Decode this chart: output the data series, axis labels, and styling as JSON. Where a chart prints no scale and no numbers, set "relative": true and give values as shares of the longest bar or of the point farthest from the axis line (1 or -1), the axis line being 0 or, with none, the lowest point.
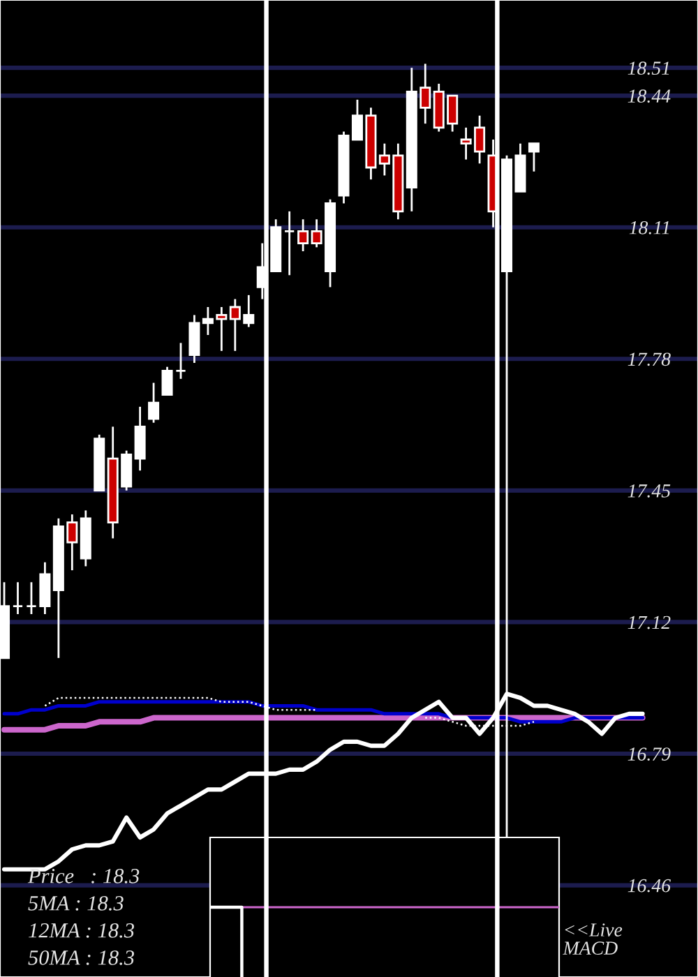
{
  "chart_data": [
    {
      "type": "candlestick",
      "categories": [
        null,
        null,
        null,
        null,
        null,
        null,
        null,
        null,
        null,
        null,
        null,
        null,
        null,
        null,
        null,
        null,
        null,
        null,
        null,
        null,
        null,
        null,
        null,
        null,
        null,
        null,
        null,
        null,
        null,
        null,
        null,
        null,
        null,
        null,
        null,
        null,
        null,
        null,
        null,
        null,
        null,
        null,
        null,
        null,
        null,
        null,
        null,
        null
      ],
      "ohlc": [
        [
          17.03,
          17.22,
          17.03,
          17.16
        ],
        [
          17.16,
          17.22,
          17.14,
          17.16
        ],
        [
          17.16,
          17.22,
          17.14,
          17.16
        ],
        [
          17.16,
          17.27,
          17.14,
          17.24
        ],
        [
          17.2,
          17.38,
          17.03,
          17.36
        ],
        [
          17.37,
          17.39,
          17.25,
          17.32
        ],
        [
          17.28,
          17.4,
          17.26,
          17.38
        ],
        [
          17.45,
          17.59,
          17.45,
          17.58
        ],
        [
          17.53,
          17.61,
          17.33,
          17.37
        ],
        [
          17.46,
          17.55,
          17.45,
          17.54
        ],
        [
          17.53,
          17.66,
          17.5,
          17.61
        ],
        [
          17.63,
          17.72,
          17.62,
          17.67
        ],
        [
          17.69,
          17.76,
          17.69,
          17.75
        ],
        [
          17.75,
          17.82,
          17.73,
          17.75
        ],
        [
          17.79,
          17.89,
          17.77,
          17.87
        ],
        [
          17.87,
          17.91,
          17.84,
          17.88
        ],
        [
          17.89,
          17.91,
          17.8,
          17.88
        ],
        [
          17.91,
          17.93,
          17.8,
          17.88
        ],
        [
          17.87,
          17.94,
          17.86,
          17.89
        ],
        [
          17.96,
          18.07,
          17.93,
          18.01
        ],
        [
          18.0,
          18.13,
          18.0,
          18.11
        ],
        [
          18.1,
          18.15,
          17.99,
          18.1
        ],
        [
          18.1,
          18.13,
          18.05,
          18.07
        ],
        [
          18.1,
          18.13,
          18.06,
          18.07
        ],
        [
          18.0,
          18.18,
          17.96,
          18.17
        ],
        [
          18.19,
          18.35,
          18.17,
          18.34
        ],
        [
          18.33,
          18.43,
          18.33,
          18.39
        ],
        [
          18.39,
          18.41,
          18.23,
          18.26
        ],
        [
          18.29,
          18.32,
          18.24,
          18.27
        ],
        [
          18.29,
          18.32,
          18.13,
          18.15
        ],
        [
          18.21,
          18.51,
          18.15,
          18.45
        ],
        [
          18.46,
          18.52,
          18.37,
          18.41
        ],
        [
          18.45,
          18.47,
          18.35,
          18.36
        ],
        [
          18.44,
          18.44,
          18.35,
          18.37
        ],
        [
          18.33,
          18.36,
          18.28,
          18.32
        ],
        [
          18.36,
          18.39,
          18.27,
          18.3
        ],
        [
          18.29,
          18.33,
          18.11,
          18.15
        ],
        [
          18.0,
          18.29,
          16.58,
          18.28
        ],
        [
          18.2,
          18.32,
          18.2,
          18.29
        ],
        [
          18.3,
          18.32,
          18.25,
          18.32
        ],
        null,
        null,
        null,
        null,
        null,
        null,
        null,
        null
      ],
      "colors": [
        "#ffffff",
        "#ffffff",
        "#ffffff",
        "#ffffff",
        "#ffffff",
        "#cc0000",
        "#ffffff",
        "#ffffff",
        "#cc0000",
        "#ffffff",
        "#ffffff",
        "#ffffff",
        "#ffffff",
        "#ffffff",
        "#ffffff",
        "#ffffff",
        "#cc0000",
        "#cc0000",
        "#ffffff",
        "#ffffff",
        "#ffffff",
        "#ffffff",
        "#cc0000",
        "#cc0000",
        "#ffffff",
        "#ffffff",
        "#ffffff",
        "#cc0000",
        "#cc0000",
        "#cc0000",
        "#ffffff",
        "#cc0000",
        "#cc0000",
        "#cc0000",
        "#cc0000",
        "#cc0000",
        "#cc0000",
        "#ffffff",
        "#ffffff",
        "#ffffff",
        null,
        null,
        null,
        null,
        null,
        null,
        null,
        null
      ],
      "series": [
        {
          "type": "line",
          "color": "#cc66cc",
          "values": [
            16.85,
            16.85,
            16.85,
            16.85,
            16.86,
            16.86,
            16.86,
            16.87,
            16.87,
            16.87,
            16.87,
            16.88,
            16.88,
            16.88,
            16.88,
            16.88,
            16.88,
            16.88,
            16.88,
            16.88,
            16.88,
            16.88,
            16.88,
            16.88,
            16.88,
            16.88,
            16.88,
            16.88,
            16.88,
            16.88,
            16.88,
            16.88,
            16.88,
            16.88,
            16.88,
            16.88,
            16.88,
            16.88,
            16.88,
            16.88,
            16.88,
            16.88,
            16.88,
            16.88,
            16.88,
            16.88,
            16.88,
            16.88
          ]
        },
        {
          "type": "line",
          "color": "#0000cc",
          "values": [
            16.89,
            16.89,
            16.9,
            16.9,
            16.91,
            16.91,
            16.91,
            16.92,
            16.92,
            16.92,
            16.92,
            16.92,
            16.92,
            16.92,
            16.92,
            16.92,
            16.92,
            16.92,
            16.92,
            16.91,
            16.91,
            16.91,
            16.91,
            16.9,
            16.9,
            16.9,
            16.9,
            16.9,
            16.89,
            16.89,
            16.89,
            16.89,
            16.89,
            16.88,
            16.88,
            16.88,
            16.88,
            16.88,
            16.87,
            16.87,
            16.87,
            16.87,
            16.88,
            16.88,
            16.88,
            16.88,
            16.88,
            16.88
          ]
        },
        {
          "type": "line",
          "color": "#ffffff",
          "line_style": "dotted",
          "values": [
            null,
            null,
            null,
            16.91,
            16.93,
            16.93,
            16.93,
            16.93,
            16.93,
            16.93,
            16.93,
            16.93,
            16.93,
            16.93,
            16.93,
            16.93,
            16.92,
            16.92,
            16.92,
            16.91,
            16.9,
            16.9,
            16.9,
            16.9,
            null,
            null,
            null,
            null,
            null,
            null,
            null,
            16.88,
            16.88,
            16.87,
            16.86,
            16.86,
            16.86,
            16.86,
            16.86,
            16.87,
            null,
            null,
            null,
            null,
            null,
            null,
            null,
            null
          ]
        },
        {
          "type": "line",
          "color": "#ffffff",
          "values": [
            16.5,
            16.5,
            16.5,
            16.5,
            16.52,
            16.55,
            16.56,
            16.56,
            16.57,
            16.63,
            16.58,
            16.6,
            16.64,
            16.66,
            16.68,
            16.7,
            16.7,
            16.72,
            16.74,
            16.74,
            16.74,
            16.75,
            16.75,
            16.77,
            16.8,
            16.82,
            16.82,
            16.81,
            16.81,
            16.84,
            16.88,
            16.9,
            16.92,
            16.88,
            16.88,
            16.84,
            16.88,
            16.94,
            16.93,
            16.91,
            16.91,
            16.9,
            16.89,
            16.87,
            16.84,
            16.88,
            16.89,
            16.89
          ]
        }
      ],
      "ylim": [
        16.23,
        18.68
      ],
      "yticks": [
        16.46,
        16.79,
        17.12,
        17.45,
        17.78,
        18.11,
        18.44,
        18.51
      ],
      "grid": "y",
      "tick_labels": "y",
      "annotations": [
        "Price   : 18.3",
        "5MA : 18.3",
        "12MA : 18.3",
        "50MA : 18.3"
      ]
    },
    {
      "type": "line",
      "relative": true,
      "categories": [
        null,
        null,
        null,
        null,
        null,
        null,
        null,
        null,
        null,
        null,
        null,
        null
      ],
      "series": [
        {
          "color": "#cc66cc",
          "values": [
            null,
            1,
            1,
            1,
            1,
            1,
            1,
            1,
            1,
            1,
            1,
            1
          ]
        },
        {
          "type": "step",
          "color": "#ffffff",
          "values": [
            1,
            0,
            null,
            null,
            null,
            null,
            null,
            null,
            null,
            null,
            null,
            null
          ]
        }
      ],
      "tick_labels": false,
      "annotations": [
        "<<Live\nMACD"
      ]
    }
  ]
}
